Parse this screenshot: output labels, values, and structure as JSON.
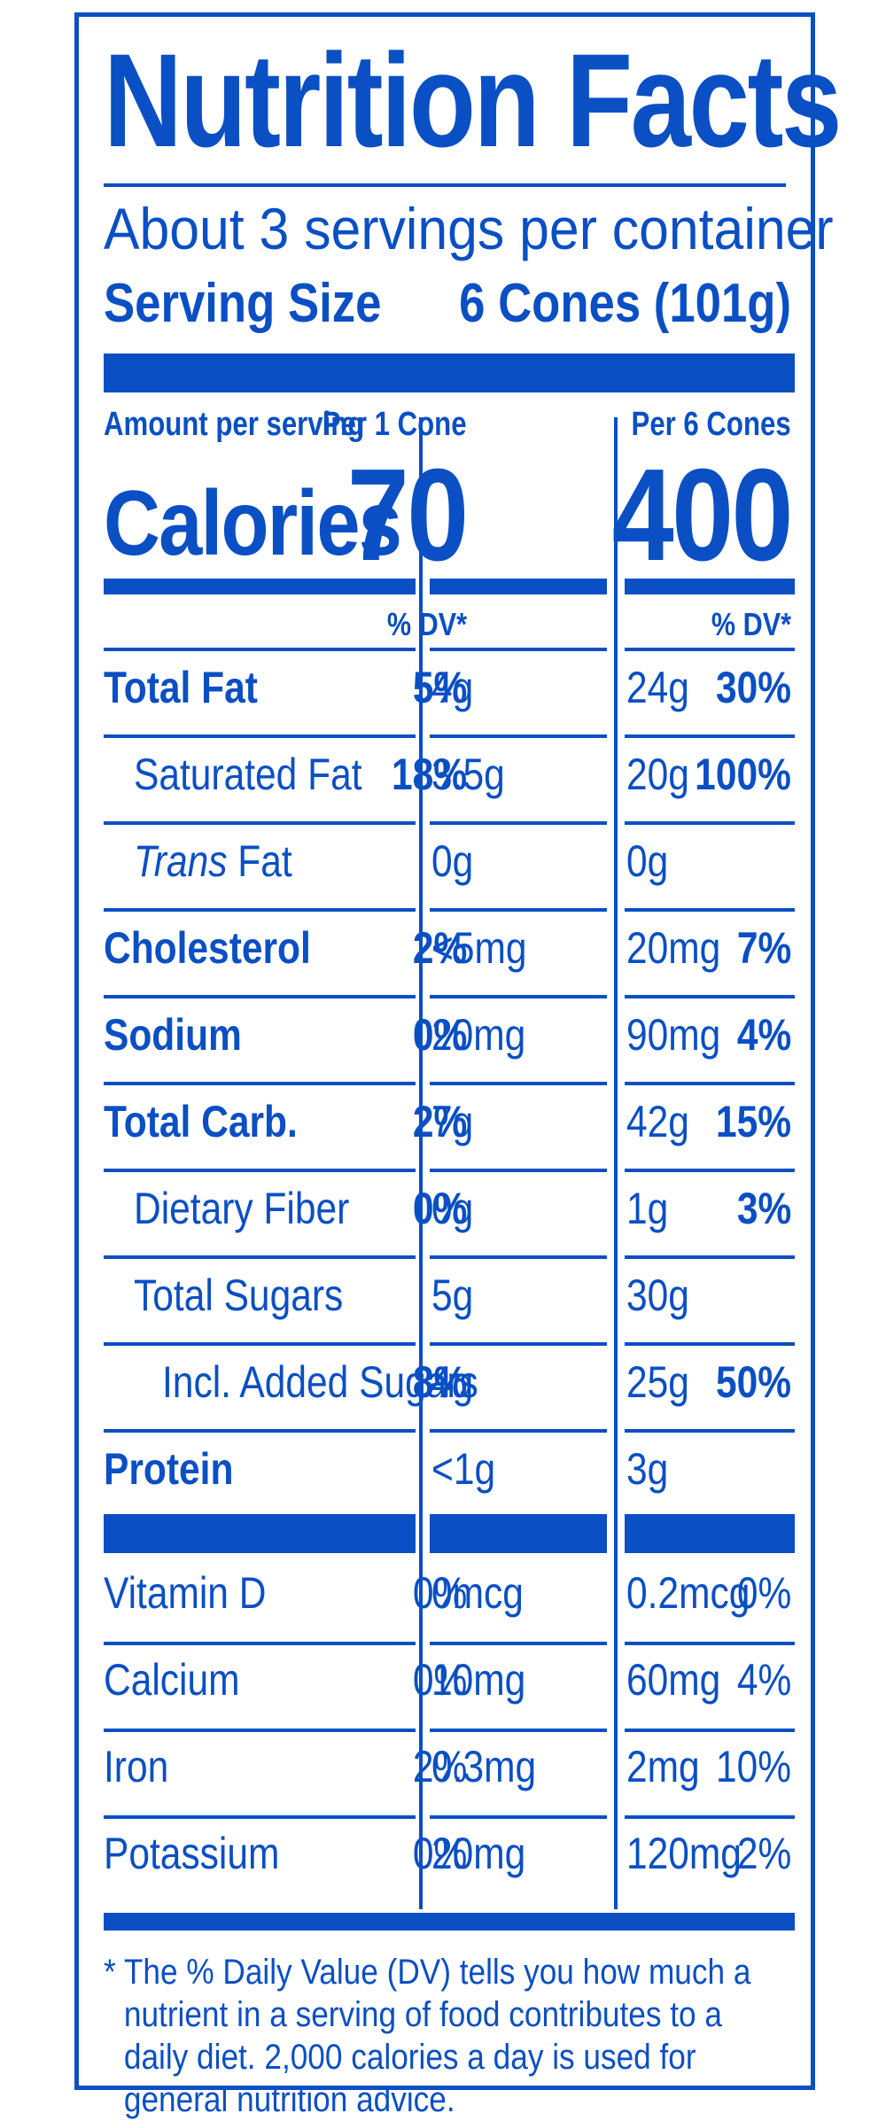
{
  "title": "Nutrition Facts",
  "servings_per_container": "About 3 servings per container",
  "serving_size_label": "Serving Size",
  "serving_size_value": "6 Cones (101g)",
  "amount_per_serving": "Amount per serving",
  "columns": [
    {
      "header": "Per 1 Cone",
      "calories": "70",
      "dv_header": "% DV*"
    },
    {
      "header": "Per 6 Cones",
      "calories": "400",
      "dv_header": "% DV*"
    }
  ],
  "calories_label": "Calories",
  "nutrients": [
    {
      "name": "Total Fat",
      "bold": true,
      "indent": 0,
      "c1_amount": "4g",
      "c1_dv": "5%",
      "c2_amount": "24g",
      "c2_dv": "30%"
    },
    {
      "name": "Saturated Fat",
      "bold": false,
      "indent": 1,
      "c1_amount": "3.5g",
      "c1_dv": "18%",
      "c2_amount": "20g",
      "c2_dv": "100%"
    },
    {
      "name_prefix": "Trans",
      "name": " Fat",
      "bold": false,
      "indent": 1,
      "c1_amount": "0g",
      "c1_dv": "",
      "c2_amount": "0g",
      "c2_dv": ""
    },
    {
      "name": "Cholesterol",
      "bold": true,
      "indent": 0,
      "c1_amount": "<5mg",
      "c1_dv": "2%",
      "c2_amount": "20mg",
      "c2_dv": "7%"
    },
    {
      "name": "Sodium",
      "bold": true,
      "indent": 0,
      "c1_amount": "20mg",
      "c1_dv": "0%",
      "c2_amount": "90mg",
      "c2_dv": "4%"
    },
    {
      "name": "Total Carb.",
      "bold": true,
      "indent": 0,
      "c1_amount": "7g",
      "c1_dv": "2%",
      "c2_amount": "42g",
      "c2_dv": "15%"
    },
    {
      "name": "Dietary Fiber",
      "bold": false,
      "indent": 1,
      "c1_amount": "0g",
      "c1_dv": "0%",
      "c2_amount": "1g",
      "c2_dv": "3%"
    },
    {
      "name": "Total Sugars",
      "bold": false,
      "indent": 1,
      "c1_amount": "5g",
      "c1_dv": "",
      "c2_amount": "30g",
      "c2_dv": ""
    },
    {
      "name": "Incl. Added Sugars",
      "bold": false,
      "indent": 2,
      "c1_amount": "4g",
      "c1_dv": "8%",
      "c2_amount": "25g",
      "c2_dv": "50%"
    },
    {
      "name": "Protein",
      "bold": true,
      "indent": 0,
      "c1_amount": "<1g",
      "c1_dv": "",
      "c2_amount": "3g",
      "c2_dv": ""
    }
  ],
  "vitamins": [
    {
      "name": "Vitamin D",
      "c1_amount": "0mcg",
      "c1_dv": "0%",
      "c2_amount": "0.2mcg",
      "c2_dv": "0%"
    },
    {
      "name": "Calcium",
      "c1_amount": "10mg",
      "c1_dv": "0%",
      "c2_amount": "60mg",
      "c2_dv": "4%"
    },
    {
      "name": "Iron",
      "c1_amount": "0.3mg",
      "c1_dv": "2%",
      "c2_amount": "2mg",
      "c2_dv": "10%"
    },
    {
      "name": "Potassium",
      "c1_amount": "20mg",
      "c1_dv": "0%",
      "c2_amount": "120mg",
      "c2_dv": "2%"
    }
  ],
  "footnote_asterisk": "*",
  "footnote": "The % Daily Value (DV) tells you how much a nutrient in a serving of food contributes to a daily diet. 2,000 calories a day is used for general nutrition advice.",
  "colors": {
    "ink": "#0a4fc4",
    "background": "#ffffff"
  }
}
